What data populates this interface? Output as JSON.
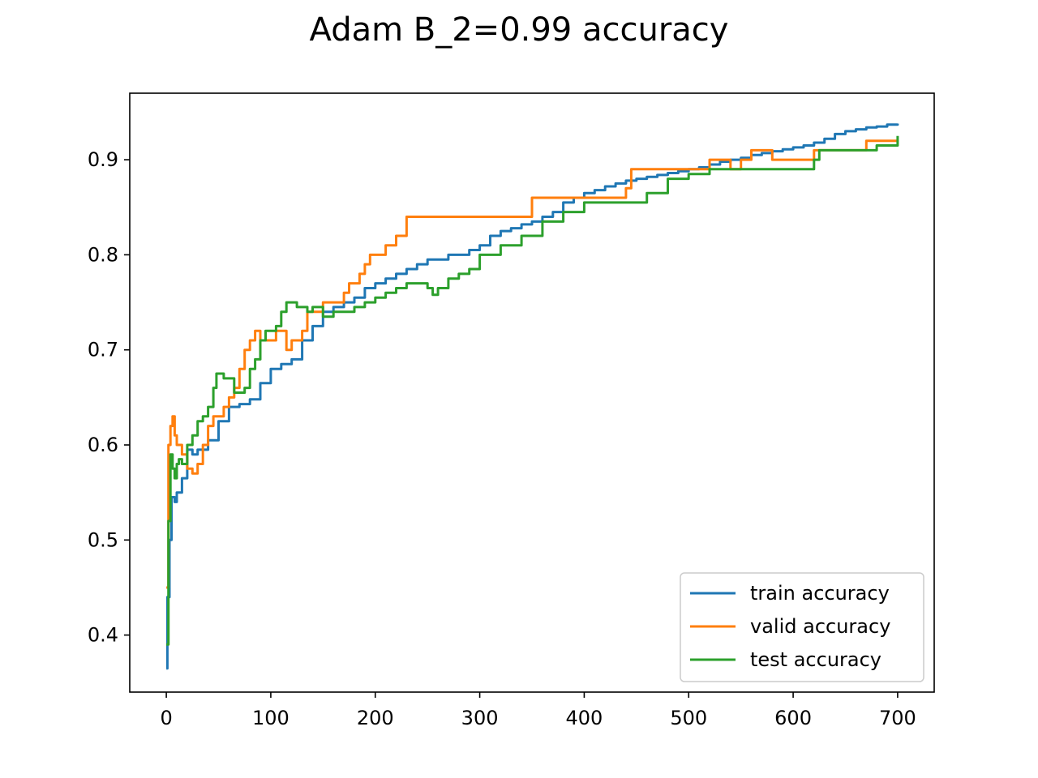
{
  "chart_data": {
    "type": "line",
    "title": "Adam B_2=0.99 accuracy",
    "xlabel": "",
    "ylabel": "",
    "xlim": [
      -35,
      735
    ],
    "ylim": [
      0.34,
      0.97
    ],
    "xticks": [
      0,
      100,
      200,
      300,
      400,
      500,
      600,
      700
    ],
    "yticks": [
      0.4,
      0.5,
      0.6,
      0.7,
      0.8,
      0.9
    ],
    "grid": false,
    "legend_position": "lower-right",
    "series": [
      {
        "name": "train accuracy",
        "color": "#1f77b4",
        "x": [
          0,
          1,
          3,
          5,
          8,
          10,
          15,
          20,
          25,
          30,
          40,
          50,
          60,
          70,
          80,
          90,
          100,
          110,
          120,
          130,
          140,
          150,
          160,
          170,
          180,
          190,
          200,
          210,
          220,
          230,
          240,
          250,
          260,
          270,
          280,
          290,
          300,
          310,
          320,
          330,
          340,
          350,
          360,
          370,
          380,
          390,
          400,
          410,
          420,
          430,
          440,
          450,
          460,
          470,
          480,
          490,
          500,
          510,
          520,
          530,
          540,
          550,
          560,
          570,
          580,
          590,
          600,
          610,
          620,
          630,
          640,
          650,
          660,
          670,
          680,
          690,
          700
        ],
        "y": [
          0.365,
          0.44,
          0.5,
          0.545,
          0.54,
          0.55,
          0.565,
          0.595,
          0.59,
          0.595,
          0.605,
          0.625,
          0.64,
          0.643,
          0.648,
          0.665,
          0.68,
          0.685,
          0.69,
          0.71,
          0.725,
          0.74,
          0.745,
          0.75,
          0.755,
          0.765,
          0.77,
          0.775,
          0.78,
          0.785,
          0.79,
          0.795,
          0.795,
          0.8,
          0.8,
          0.805,
          0.81,
          0.82,
          0.825,
          0.828,
          0.832,
          0.835,
          0.84,
          0.845,
          0.855,
          0.86,
          0.865,
          0.868,
          0.872,
          0.875,
          0.878,
          0.88,
          0.882,
          0.884,
          0.886,
          0.888,
          0.89,
          0.892,
          0.895,
          0.898,
          0.9,
          0.902,
          0.905,
          0.907,
          0.909,
          0.911,
          0.913,
          0.915,
          0.918,
          0.922,
          0.927,
          0.93,
          0.932,
          0.934,
          0.935,
          0.937,
          0.938
        ]
      },
      {
        "name": "valid accuracy",
        "color": "#ff7f0e",
        "x": [
          0,
          2,
          4,
          6,
          8,
          10,
          12,
          15,
          20,
          25,
          30,
          35,
          40,
          45,
          50,
          55,
          60,
          65,
          70,
          75,
          80,
          85,
          90,
          95,
          100,
          105,
          110,
          115,
          120,
          125,
          130,
          135,
          140,
          150,
          160,
          170,
          175,
          180,
          185,
          190,
          195,
          200,
          210,
          220,
          230,
          240,
          260,
          280,
          300,
          320,
          340,
          350,
          360,
          380,
          400,
          420,
          440,
          445,
          460,
          480,
          500,
          510,
          520,
          530,
          540,
          550,
          560,
          580,
          600,
          610,
          620,
          640,
          660,
          670,
          680,
          690,
          700
        ],
        "y": [
          0.45,
          0.6,
          0.62,
          0.63,
          0.61,
          0.6,
          0.6,
          0.59,
          0.575,
          0.57,
          0.58,
          0.6,
          0.62,
          0.63,
          0.63,
          0.64,
          0.65,
          0.66,
          0.68,
          0.7,
          0.71,
          0.72,
          0.71,
          0.71,
          0.71,
          0.72,
          0.72,
          0.7,
          0.71,
          0.71,
          0.72,
          0.74,
          0.74,
          0.75,
          0.75,
          0.76,
          0.77,
          0.77,
          0.78,
          0.79,
          0.8,
          0.8,
          0.81,
          0.82,
          0.84,
          0.84,
          0.84,
          0.84,
          0.84,
          0.84,
          0.84,
          0.86,
          0.86,
          0.86,
          0.86,
          0.86,
          0.87,
          0.89,
          0.89,
          0.89,
          0.89,
          0.89,
          0.9,
          0.9,
          0.89,
          0.9,
          0.91,
          0.9,
          0.9,
          0.9,
          0.91,
          0.91,
          0.91,
          0.92,
          0.92,
          0.92,
          0.92
        ]
      },
      {
        "name": "test accuracy",
        "color": "#2ca02c",
        "x": [
          0,
          2,
          4,
          6,
          8,
          10,
          12,
          15,
          20,
          25,
          30,
          35,
          40,
          45,
          48,
          50,
          55,
          60,
          65,
          70,
          75,
          80,
          85,
          90,
          95,
          100,
          105,
          110,
          115,
          120,
          125,
          130,
          135,
          140,
          150,
          160,
          170,
          180,
          190,
          200,
          210,
          220,
          230,
          240,
          250,
          255,
          260,
          270,
          280,
          290,
          300,
          320,
          340,
          360,
          380,
          400,
          420,
          440,
          460,
          480,
          500,
          520,
          540,
          560,
          580,
          600,
          620,
          625,
          640,
          660,
          680,
          700
        ],
        "y": [
          0.39,
          0.52,
          0.59,
          0.575,
          0.565,
          0.58,
          0.585,
          0.58,
          0.6,
          0.61,
          0.625,
          0.63,
          0.64,
          0.66,
          0.675,
          0.675,
          0.67,
          0.67,
          0.655,
          0.655,
          0.66,
          0.68,
          0.69,
          0.71,
          0.72,
          0.72,
          0.725,
          0.74,
          0.75,
          0.75,
          0.745,
          0.745,
          0.74,
          0.745,
          0.735,
          0.74,
          0.74,
          0.745,
          0.75,
          0.755,
          0.76,
          0.765,
          0.77,
          0.77,
          0.765,
          0.758,
          0.765,
          0.775,
          0.78,
          0.785,
          0.8,
          0.81,
          0.82,
          0.835,
          0.845,
          0.855,
          0.855,
          0.855,
          0.865,
          0.88,
          0.885,
          0.89,
          0.89,
          0.89,
          0.89,
          0.89,
          0.9,
          0.91,
          0.91,
          0.91,
          0.915,
          0.925
        ]
      }
    ]
  }
}
